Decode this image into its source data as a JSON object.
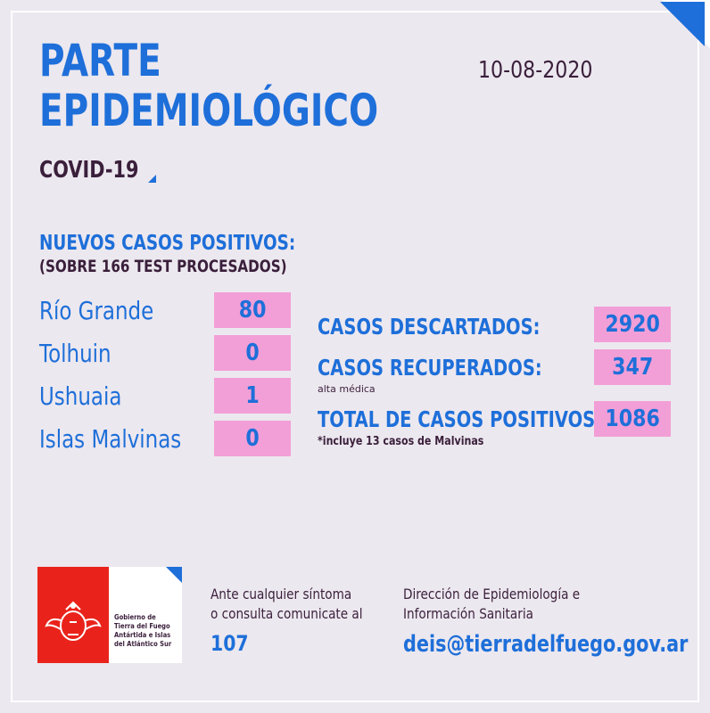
{
  "header": {
    "title_line1": "PARTE",
    "title_line2": "EPIDEMIOLÓGICO",
    "subtitle": "COVID-19",
    "date": "10-08-2020"
  },
  "new_cases": {
    "heading": "NUEVOS CASOS POSITIVOS:",
    "subheading": "(SOBRE 166 TEST PROCESADOS)",
    "cities": [
      {
        "name": "Río Grande",
        "value": "80"
      },
      {
        "name": "Tolhuin",
        "value": "0"
      },
      {
        "name": "Ushuaia",
        "value": "1"
      },
      {
        "name": "Islas Malvinas",
        "value": "0"
      }
    ]
  },
  "stats": {
    "discarded_label": "CASOS DESCARTADOS:",
    "discarded_value": "2920",
    "recovered_label": "CASOS RECUPERADOS:",
    "recovered_note": "alta médica",
    "recovered_value": "347",
    "total_label": "TOTAL DE CASOS POSITIVOS",
    "total_note": "*incluye 13 casos de Malvinas",
    "total_value": "1086"
  },
  "footer": {
    "logo_lines": [
      "Gobierno de",
      "Tierra del Fuego",
      "Antártida e Islas",
      "del Atlántico Sur"
    ],
    "contact_line1": "Ante cualquier síntoma",
    "contact_line2": "o consulta comunicate al",
    "phone": "107",
    "dept_line1": "Dirección de Epidemiología e",
    "dept_line2": "Información Sanitaria",
    "email": "deis@tierradelfuego.gov.ar"
  },
  "colors": {
    "accent": "#1e6fd9",
    "dark": "#3a1f3b",
    "box": "#f29fd7",
    "background": "#ece8ef",
    "logo_red": "#e9231b"
  }
}
